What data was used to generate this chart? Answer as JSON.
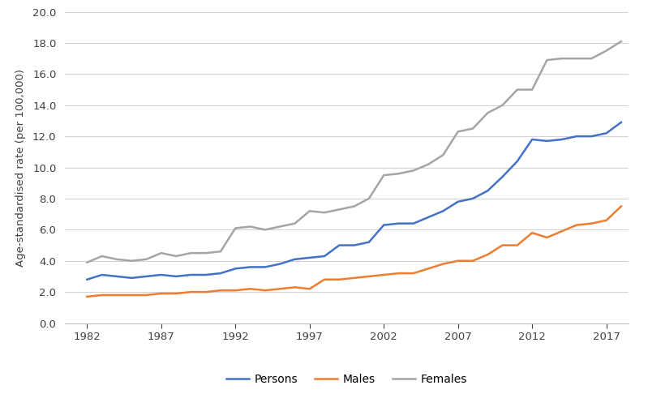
{
  "years": [
    1982,
    1983,
    1984,
    1985,
    1986,
    1987,
    1988,
    1989,
    1990,
    1991,
    1992,
    1993,
    1994,
    1995,
    1996,
    1997,
    1998,
    1999,
    2000,
    2001,
    2002,
    2003,
    2004,
    2005,
    2006,
    2007,
    2008,
    2009,
    2010,
    2011,
    2012,
    2013,
    2014,
    2015,
    2016,
    2017,
    2018
  ],
  "persons": [
    2.8,
    3.1,
    3.0,
    2.9,
    3.0,
    3.1,
    3.0,
    3.1,
    3.1,
    3.2,
    3.5,
    3.6,
    3.6,
    3.8,
    4.1,
    4.2,
    4.3,
    5.0,
    5.0,
    5.2,
    6.3,
    6.4,
    6.4,
    6.8,
    7.2,
    7.8,
    8.0,
    8.5,
    9.4,
    10.4,
    11.8,
    11.7,
    11.8,
    12.0,
    12.0,
    12.2,
    12.9
  ],
  "males": [
    1.7,
    1.8,
    1.8,
    1.8,
    1.8,
    1.9,
    1.9,
    2.0,
    2.0,
    2.1,
    2.1,
    2.2,
    2.1,
    2.2,
    2.3,
    2.2,
    2.8,
    2.8,
    2.9,
    3.0,
    3.1,
    3.2,
    3.2,
    3.5,
    3.8,
    4.0,
    4.0,
    4.4,
    5.0,
    5.0,
    5.8,
    5.5,
    5.9,
    6.3,
    6.4,
    6.6,
    7.5
  ],
  "females": [
    3.9,
    4.3,
    4.1,
    4.0,
    4.1,
    4.5,
    4.3,
    4.5,
    4.5,
    4.6,
    6.1,
    6.2,
    6.0,
    6.2,
    6.4,
    7.2,
    7.1,
    7.3,
    7.5,
    8.0,
    9.5,
    9.6,
    9.8,
    10.2,
    10.8,
    12.3,
    12.5,
    13.5,
    14.0,
    15.0,
    15.0,
    16.9,
    17.0,
    17.0,
    17.0,
    17.5,
    18.1
  ],
  "persons_color": "#4472C4",
  "males_color": "#ED7D31",
  "females_color": "#A5A5A5",
  "ylabel": "Age-standardised rate (per 100,000)",
  "ylim": [
    0.0,
    20.0
  ],
  "yticks": [
    0.0,
    2.0,
    4.0,
    6.0,
    8.0,
    10.0,
    12.0,
    14.0,
    16.0,
    18.0,
    20.0
  ],
  "xticks": [
    1982,
    1987,
    1992,
    1997,
    2002,
    2007,
    2012,
    2017
  ],
  "xlim": [
    1980.5,
    2018.5
  ],
  "legend_labels": [
    "Persons",
    "Males",
    "Females"
  ],
  "line_width": 1.8,
  "background_color": "#FFFFFF",
  "grid_color": "#D3D3D3",
  "spine_color": "#BFBFBF"
}
